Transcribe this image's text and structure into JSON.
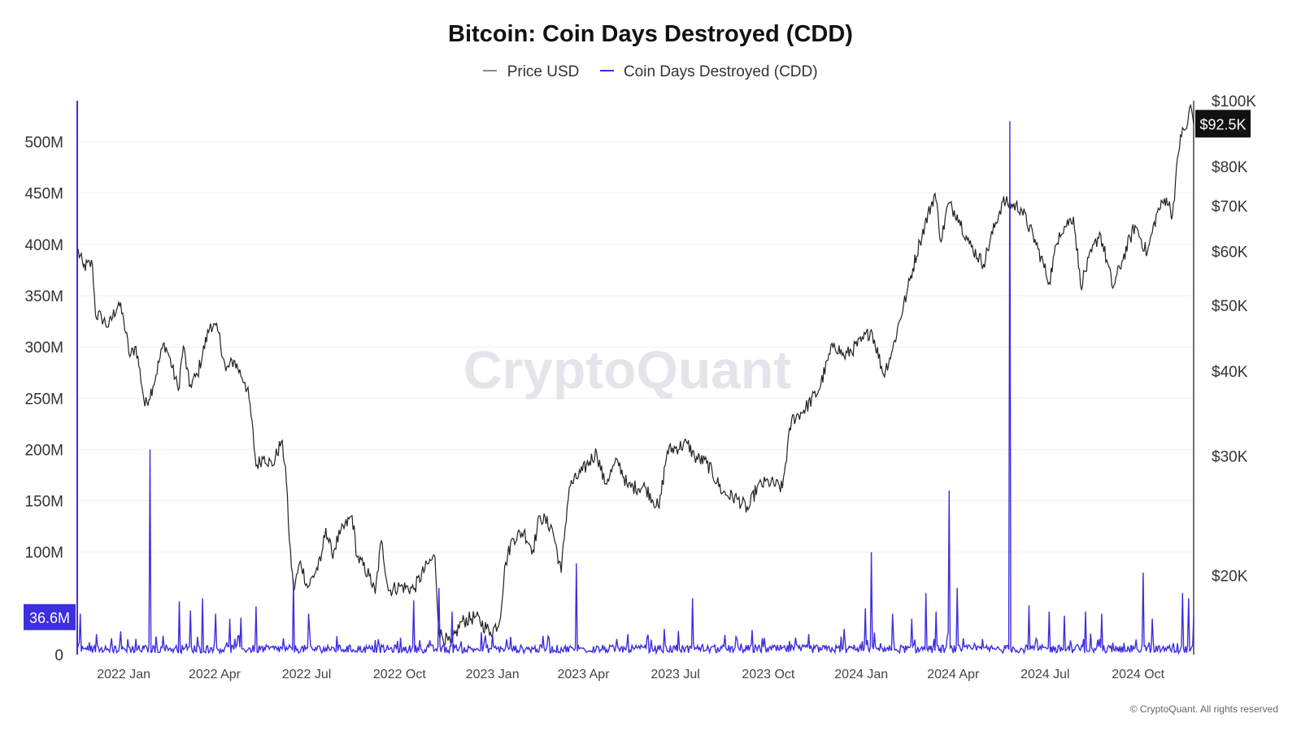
{
  "title": "Bitcoin: Coin Days Destroyed (CDD)",
  "legend": [
    {
      "label": "Price USD",
      "color": "#888888"
    },
    {
      "label": "Coin Days Destroyed (CDD)",
      "color": "#3d2ee0"
    }
  ],
  "watermark": "CryptoQuant",
  "copyright": "© CryptoQuant. All rights reserved",
  "colors": {
    "price": "#222222",
    "cdd": "#3d2ee0",
    "grid": "#efefef"
  },
  "chart_data": {
    "type": "line",
    "x_range": [
      "2021-11-16",
      "2024-11-25"
    ],
    "x_ticks": [
      {
        "date": "2022-01-01",
        "label": "2022 Jan"
      },
      {
        "date": "2022-04-01",
        "label": "2022 Apr"
      },
      {
        "date": "2022-07-01",
        "label": "2022 Jul"
      },
      {
        "date": "2022-10-01",
        "label": "2022 Oct"
      },
      {
        "date": "2023-01-01",
        "label": "2023 Jan"
      },
      {
        "date": "2023-04-01",
        "label": "2023 Apr"
      },
      {
        "date": "2023-07-01",
        "label": "2023 Jul"
      },
      {
        "date": "2023-10-01",
        "label": "2023 Oct"
      },
      {
        "date": "2024-01-01",
        "label": "2024 Jan"
      },
      {
        "date": "2024-04-01",
        "label": "2024 Apr"
      },
      {
        "date": "2024-07-01",
        "label": "2024 Jul"
      },
      {
        "date": "2024-10-01",
        "label": "2024 Oct"
      }
    ],
    "y_left": {
      "range": [
        0,
        540000000
      ],
      "ticks": [
        {
          "value": 0,
          "label": "0"
        },
        {
          "value": 100000000,
          "label": "100M"
        },
        {
          "value": 150000000,
          "label": "150M"
        },
        {
          "value": 200000000,
          "label": "200M"
        },
        {
          "value": 250000000,
          "label": "250M"
        },
        {
          "value": 300000000,
          "label": "300M"
        },
        {
          "value": 350000000,
          "label": "350M"
        },
        {
          "value": 400000000,
          "label": "400M"
        },
        {
          "value": 450000000,
          "label": "450M"
        },
        {
          "value": 500000000,
          "label": "500M"
        }
      ],
      "current_label": "36.6M",
      "current_value": 36600000
    },
    "y_right": {
      "scale": "log",
      "range": [
        15300,
        100000
      ],
      "ticks": [
        {
          "value": 20000,
          "label": "$20K"
        },
        {
          "value": 30000,
          "label": "$30K"
        },
        {
          "value": 40000,
          "label": "$40K"
        },
        {
          "value": 50000,
          "label": "$50K"
        },
        {
          "value": 60000,
          "label": "$60K"
        },
        {
          "value": 70000,
          "label": "$70K"
        },
        {
          "value": 80000,
          "label": "$80K"
        },
        {
          "value": 100000,
          "label": "$100K"
        }
      ],
      "current_label": "$92.5K",
      "current_value": 92500
    },
    "series": [
      {
        "name": "Price USD",
        "axis": "right",
        "points": [
          [
            "2021-11-16",
            60500
          ],
          [
            "2021-11-22",
            57000
          ],
          [
            "2021-12-01",
            57500
          ],
          [
            "2021-12-04",
            48500
          ],
          [
            "2021-12-10",
            48000
          ],
          [
            "2021-12-17",
            46500
          ],
          [
            "2021-12-27",
            50500
          ],
          [
            "2022-01-01",
            47500
          ],
          [
            "2022-01-07",
            42000
          ],
          [
            "2022-01-13",
            43500
          ],
          [
            "2022-01-22",
            35500
          ],
          [
            "2022-01-30",
            38000
          ],
          [
            "2022-02-10",
            44000
          ],
          [
            "2022-02-14",
            42500
          ],
          [
            "2022-02-24",
            37500
          ],
          [
            "2022-03-01",
            43500
          ],
          [
            "2022-03-07",
            38000
          ],
          [
            "2022-03-15",
            39500
          ],
          [
            "2022-03-28",
            47000
          ],
          [
            "2022-04-05",
            45500
          ],
          [
            "2022-04-12",
            40000
          ],
          [
            "2022-04-20",
            41500
          ],
          [
            "2022-05-01",
            38500
          ],
          [
            "2022-05-05",
            36500
          ],
          [
            "2022-05-12",
            29000
          ],
          [
            "2022-05-20",
            30000
          ],
          [
            "2022-05-28",
            29000
          ],
          [
            "2022-06-06",
            31500
          ],
          [
            "2022-06-10",
            29000
          ],
          [
            "2022-06-14",
            22500
          ],
          [
            "2022-06-18",
            19000
          ],
          [
            "2022-06-25",
            21000
          ],
          [
            "2022-07-02",
            19200
          ],
          [
            "2022-07-15",
            21000
          ],
          [
            "2022-07-20",
            23500
          ],
          [
            "2022-07-26",
            21500
          ],
          [
            "2022-08-03",
            23000
          ],
          [
            "2022-08-15",
            24500
          ],
          [
            "2022-08-20",
            21300
          ],
          [
            "2022-09-01",
            20000
          ],
          [
            "2022-09-07",
            18800
          ],
          [
            "2022-09-13",
            22500
          ],
          [
            "2022-09-20",
            19000
          ],
          [
            "2022-10-01",
            19300
          ],
          [
            "2022-10-15",
            19100
          ],
          [
            "2022-10-29",
            20800
          ],
          [
            "2022-11-05",
            21300
          ],
          [
            "2022-11-09",
            16500
          ],
          [
            "2022-11-21",
            15800
          ],
          [
            "2022-12-01",
            17100
          ],
          [
            "2022-12-15",
            17400
          ],
          [
            "2022-12-30",
            16500
          ],
          [
            "2023-01-08",
            17100
          ],
          [
            "2023-01-14",
            20900
          ],
          [
            "2023-01-21",
            22700
          ],
          [
            "2023-02-01",
            23200
          ],
          [
            "2023-02-10",
            21800
          ],
          [
            "2023-02-17",
            24500
          ],
          [
            "2023-03-01",
            23500
          ],
          [
            "2023-03-10",
            20200
          ],
          [
            "2023-03-18",
            27000
          ],
          [
            "2023-03-31",
            28500
          ],
          [
            "2023-04-14",
            30400
          ],
          [
            "2023-04-22",
            27300
          ],
          [
            "2023-05-05",
            29500
          ],
          [
            "2023-05-15",
            27000
          ],
          [
            "2023-06-01",
            27000
          ],
          [
            "2023-06-15",
            25100
          ],
          [
            "2023-06-23",
            30500
          ],
          [
            "2023-07-13",
            31300
          ],
          [
            "2023-07-20",
            29900
          ],
          [
            "2023-08-01",
            29300
          ],
          [
            "2023-08-17",
            26500
          ],
          [
            "2023-09-01",
            25900
          ],
          [
            "2023-09-11",
            25000
          ],
          [
            "2023-09-20",
            27000
          ],
          [
            "2023-10-01",
            27500
          ],
          [
            "2023-10-15",
            26900
          ],
          [
            "2023-10-24",
            33900
          ],
          [
            "2023-11-05",
            35000
          ],
          [
            "2023-11-20",
            37500
          ],
          [
            "2023-12-05",
            44000
          ],
          [
            "2023-12-15",
            42000
          ],
          [
            "2024-01-01",
            44200
          ],
          [
            "2024-01-11",
            46000
          ],
          [
            "2024-01-23",
            39500
          ],
          [
            "2024-02-01",
            43000
          ],
          [
            "2024-02-15",
            52000
          ],
          [
            "2024-02-28",
            62000
          ],
          [
            "2024-03-14",
            73000
          ],
          [
            "2024-03-20",
            62000
          ],
          [
            "2024-03-27",
            70500
          ],
          [
            "2024-04-05",
            68000
          ],
          [
            "2024-04-17",
            61500
          ],
          [
            "2024-05-01",
            57500
          ],
          [
            "2024-05-20",
            71000
          ],
          [
            "2024-06-07",
            69500
          ],
          [
            "2024-06-24",
            60500
          ],
          [
            "2024-07-05",
            54000
          ],
          [
            "2024-07-15",
            64000
          ],
          [
            "2024-07-29",
            67500
          ],
          [
            "2024-08-05",
            53500
          ],
          [
            "2024-08-24",
            64000
          ],
          [
            "2024-09-06",
            53000
          ],
          [
            "2024-09-15",
            58000
          ],
          [
            "2024-09-28",
            65500
          ],
          [
            "2024-10-10",
            59500
          ],
          [
            "2024-10-20",
            68500
          ],
          [
            "2024-10-29",
            72000
          ],
          [
            "2024-11-04",
            67800
          ],
          [
            "2024-11-12",
            89000
          ],
          [
            "2024-11-18",
            91000
          ],
          [
            "2024-11-22",
            98500
          ],
          [
            "2024-11-25",
            92500
          ]
        ]
      },
      {
        "name": "Coin Days Destroyed (CDD)",
        "axis": "left",
        "baseline": 5000000,
        "spikes": [
          [
            "2021-11-19",
            40000000
          ],
          [
            "2021-12-05",
            20000000
          ],
          [
            "2021-12-20",
            16000000
          ],
          [
            "2022-01-05",
            15000000
          ],
          [
            "2022-01-27",
            200000000
          ],
          [
            "2022-02-25",
            52000000
          ],
          [
            "2022-03-08",
            43000000
          ],
          [
            "2022-03-20",
            55000000
          ],
          [
            "2022-04-02",
            40000000
          ],
          [
            "2022-04-16",
            35000000
          ],
          [
            "2022-04-27",
            36000000
          ],
          [
            "2022-05-12",
            47000000
          ],
          [
            "2022-06-18",
            73000000
          ],
          [
            "2022-07-03",
            40000000
          ],
          [
            "2022-07-31",
            18000000
          ],
          [
            "2022-09-10",
            15000000
          ],
          [
            "2022-10-15",
            53000000
          ],
          [
            "2022-11-09",
            65000000
          ],
          [
            "2022-11-22",
            42000000
          ],
          [
            "2023-01-15",
            15000000
          ],
          [
            "2023-02-25",
            18000000
          ],
          [
            "2023-03-25",
            89000000
          ],
          [
            "2023-05-15",
            20000000
          ],
          [
            "2023-06-20",
            25000000
          ],
          [
            "2023-07-18",
            55000000
          ],
          [
            "2023-09-15",
            24000000
          ],
          [
            "2023-11-10",
            20000000
          ],
          [
            "2023-12-15",
            25000000
          ],
          [
            "2024-01-05",
            45000000
          ],
          [
            "2024-01-11",
            100000000
          ],
          [
            "2024-02-01",
            40000000
          ],
          [
            "2024-02-20",
            35000000
          ],
          [
            "2024-03-05",
            60000000
          ],
          [
            "2024-03-15",
            42000000
          ],
          [
            "2024-03-28",
            160000000
          ],
          [
            "2024-04-05",
            65000000
          ],
          [
            "2024-05-27",
            520000000
          ],
          [
            "2024-06-15",
            48000000
          ],
          [
            "2024-07-05",
            42000000
          ],
          [
            "2024-07-20",
            38000000
          ],
          [
            "2024-08-10",
            42000000
          ],
          [
            "2024-08-26",
            40000000
          ],
          [
            "2024-10-06",
            80000000
          ],
          [
            "2024-10-15",
            35000000
          ],
          [
            "2024-11-14",
            60000000
          ],
          [
            "2024-11-20",
            55000000
          ],
          [
            "2024-11-25",
            36600000
          ]
        ]
      }
    ]
  }
}
